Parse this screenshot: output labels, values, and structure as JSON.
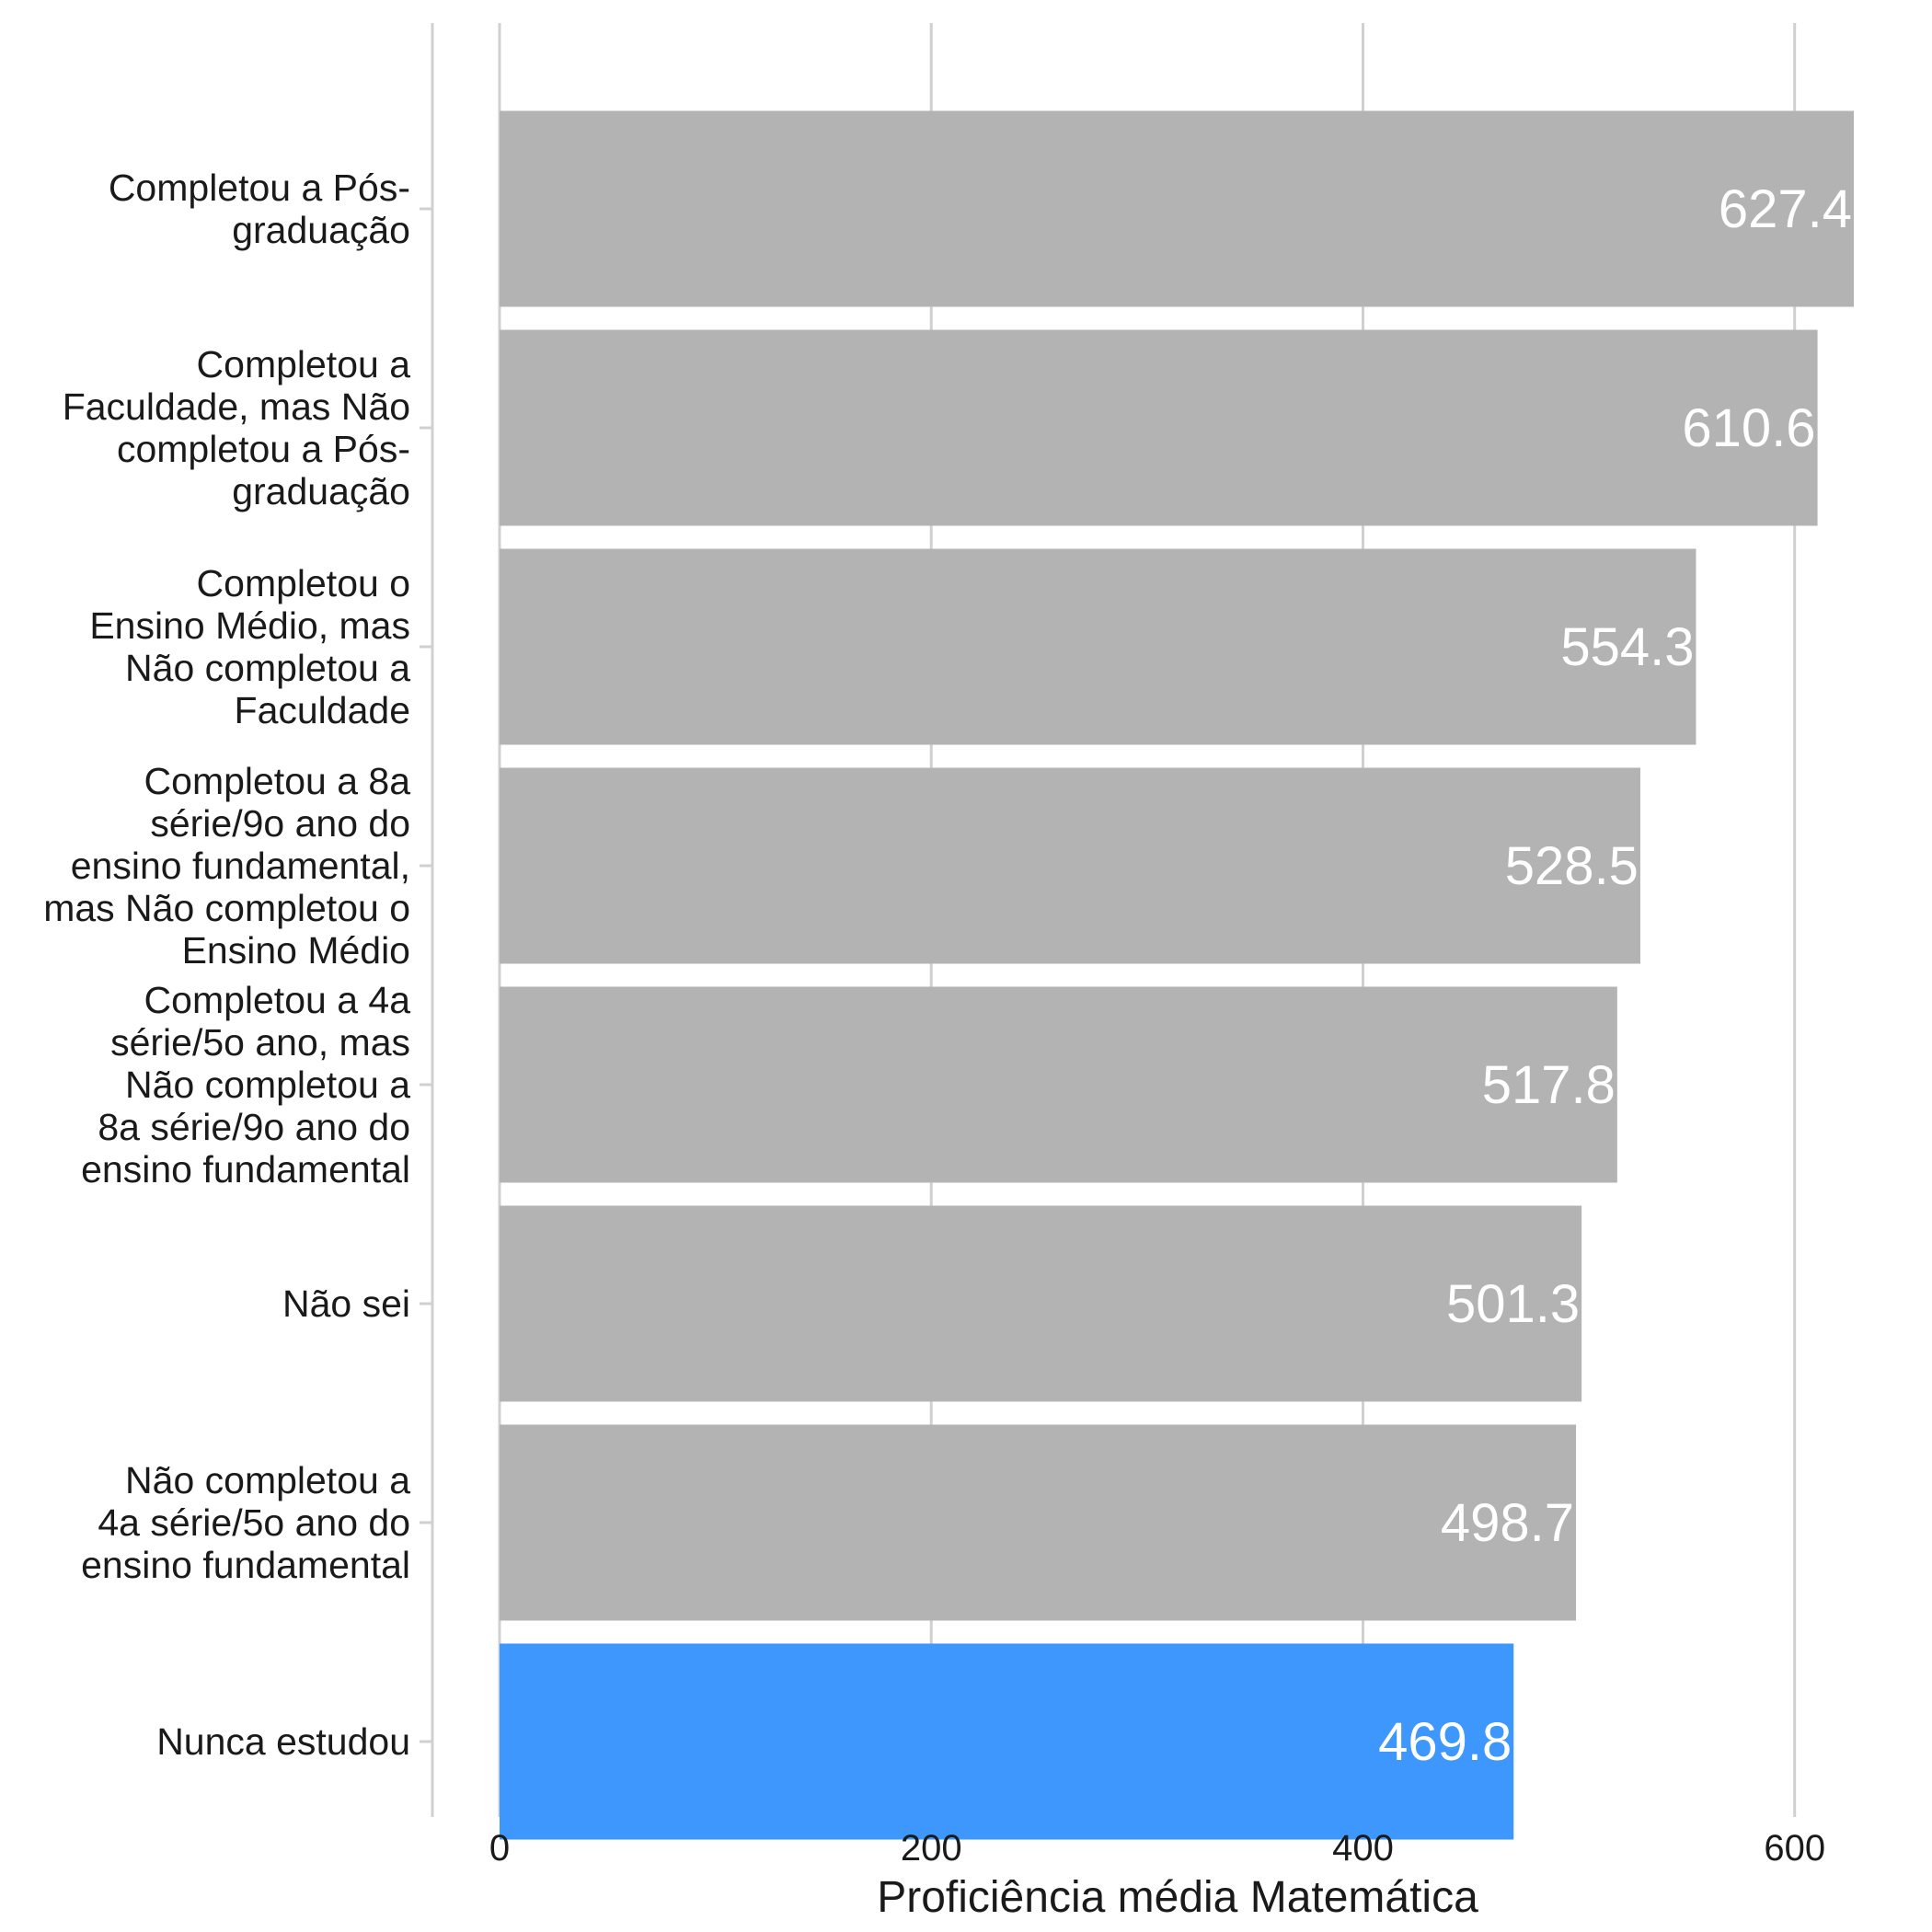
{
  "chart_data": {
    "type": "bar",
    "orientation": "horizontal",
    "categories": [
      [
        "Completou a Pós-",
        "graduação"
      ],
      [
        "Completou a",
        "Faculdade, mas Não",
        "completou a Pós-",
        "graduação"
      ],
      [
        "Completou o",
        "Ensino Médio, mas",
        "Não completou a",
        "Faculdade"
      ],
      [
        "Completou a 8a",
        "série/9o ano do",
        "ensino fundamental,",
        "mas Não completou o",
        "Ensino Médio"
      ],
      [
        "Completou a 4a",
        "série/5o ano, mas",
        "Não completou a",
        "8a série/9o ano do",
        "ensino fundamental"
      ],
      [
        "Não sei"
      ],
      [
        "Não completou a",
        "4a série/5o ano do",
        "ensino fundamental"
      ],
      [
        "Nunca estudou"
      ]
    ],
    "values": [
      627.4,
      610.6,
      554.3,
      528.5,
      517.8,
      501.3,
      498.7,
      469.8
    ],
    "value_labels": [
      "627.4",
      "610.6",
      "554.3",
      "528.5",
      "517.8",
      "501.3",
      "498.7",
      "469.8"
    ],
    "highlight_index": 7,
    "colors": {
      "default": "#b3b3b3",
      "highlight": "#3d97fc",
      "grid": "#d0d0d0"
    },
    "xlabel": "Proficiência média Matemática",
    "xlim": [
      0,
      650
    ],
    "xticks": [
      0,
      200,
      400,
      600
    ],
    "grid": true
  }
}
